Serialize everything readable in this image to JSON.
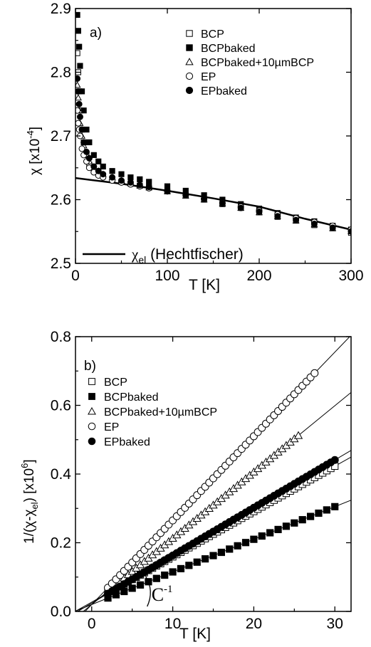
{
  "chart_data": [
    {
      "type": "scatter",
      "panel_label": "a)",
      "xlabel": "T [K]",
      "ylabel": "χ [x10",
      "ylabel_sup": "-4",
      "ylabel_end": "]",
      "xlim": [
        0,
        300
      ],
      "ylim": [
        2.5,
        2.9
      ],
      "xticks": [
        0,
        100,
        200,
        300
      ],
      "xtick_labels": [
        "0",
        "100",
        "200",
        "300"
      ],
      "yticks": [
        2.5,
        2.6,
        2.7,
        2.8,
        2.9
      ],
      "ytick_labels": [
        "2.5",
        "2.6",
        "2.7",
        "2.8",
        "2.9"
      ],
      "legend_position": "top-right",
      "series": [
        {
          "name": "BCP",
          "marker": "open-square",
          "x": [
            2,
            3,
            4,
            5,
            7,
            9,
            12,
            15,
            20,
            25,
            30,
            40,
            50,
            60,
            70,
            80,
            100,
            120,
            140,
            160,
            180,
            200,
            220,
            240,
            260,
            280,
            300
          ],
          "y": [
            2.83,
            2.8,
            2.77,
            2.74,
            2.71,
            2.69,
            2.67,
            2.655,
            2.645,
            2.64,
            2.637,
            2.632,
            2.628,
            2.625,
            2.622,
            2.619,
            2.613,
            2.607,
            2.6,
            2.593,
            2.587,
            2.58,
            2.573,
            2.567,
            2.56,
            2.555,
            2.548
          ]
        },
        {
          "name": "BCPbaked",
          "marker": "filled-square",
          "x": [
            2,
            3,
            4,
            5,
            7,
            9,
            12,
            15,
            20,
            25,
            30,
            40,
            50,
            60,
            70,
            80,
            100,
            120,
            140,
            160,
            180,
            200,
            220,
            240,
            260,
            280,
            300
          ],
          "y": [
            2.89,
            2.865,
            2.84,
            2.81,
            2.77,
            2.74,
            2.71,
            2.69,
            2.67,
            2.66,
            2.652,
            2.645,
            2.64,
            2.635,
            2.632,
            2.628,
            2.621,
            2.614,
            2.607,
            2.6,
            2.593,
            2.586,
            2.579,
            2.572,
            2.566,
            2.559,
            2.553
          ]
        },
        {
          "name": "BCPbaked+10µmBCP",
          "marker": "open-triangle",
          "x": [
            2,
            3,
            4,
            5,
            7,
            9,
            12,
            15,
            20,
            25,
            30,
            40,
            50,
            60,
            70,
            80,
            100,
            120,
            140,
            160,
            180,
            200,
            220,
            240,
            260,
            280,
            300
          ],
          "y": [
            2.78,
            2.76,
            2.74,
            2.72,
            2.7,
            2.685,
            2.67,
            2.66,
            2.65,
            2.645,
            2.64,
            2.635,
            2.63,
            2.626,
            2.622,
            2.619,
            2.613,
            2.606,
            2.6,
            2.594,
            2.587,
            2.58,
            2.574,
            2.567,
            2.561,
            2.555,
            2.55
          ]
        },
        {
          "name": "EP",
          "marker": "open-circle",
          "x": [
            2,
            3,
            4,
            5,
            7,
            9,
            12,
            15,
            20,
            25,
            30,
            40,
            50,
            60,
            70,
            80,
            100,
            120,
            140,
            160,
            180,
            200,
            220,
            240,
            260,
            280,
            300
          ],
          "y": [
            2.74,
            2.72,
            2.71,
            2.7,
            2.68,
            2.67,
            2.66,
            2.65,
            2.643,
            2.638,
            2.635,
            2.63,
            2.627,
            2.624,
            2.621,
            2.618,
            2.613,
            2.607,
            2.601,
            2.595,
            2.589,
            2.583,
            2.577,
            2.571,
            2.565,
            2.559,
            2.553
          ]
        },
        {
          "name": "EPbaked",
          "marker": "filled-circle",
          "x": [
            2,
            3,
            4,
            5,
            7,
            9,
            12,
            15,
            20,
            25,
            30,
            40,
            50,
            60,
            70,
            80,
            100,
            120,
            140,
            160,
            180,
            200,
            220,
            240,
            260,
            280,
            300
          ],
          "y": [
            2.79,
            2.77,
            2.75,
            2.73,
            2.71,
            2.69,
            2.675,
            2.665,
            2.652,
            2.645,
            2.64,
            2.635,
            2.63,
            2.627,
            2.623,
            2.62,
            2.614,
            2.607,
            2.601,
            2.594,
            2.587,
            2.581,
            2.574,
            2.568,
            2.562,
            2.556,
            2.55
          ]
        }
      ],
      "line": {
        "label_symbol": "χ",
        "label_sub": "el",
        "label_rest": " (Hechtfischer)",
        "x": [
          0,
          50,
          100,
          150,
          200,
          250,
          300
        ],
        "y": [
          2.634,
          2.625,
          2.614,
          2.602,
          2.589,
          2.57,
          2.553
        ]
      }
    },
    {
      "type": "scatter",
      "panel_label": "b)",
      "xlabel": "T [K]",
      "ylabel": "1/(χ-χ",
      "ylabel_sub": "el",
      "ylabel_mid": ") [x10",
      "ylabel_sup": "6",
      "ylabel_end": "]",
      "xlim": [
        -2,
        32
      ],
      "ylim": [
        0.0,
        0.8
      ],
      "xticks": [
        0,
        10,
        20,
        30
      ],
      "xtick_labels": [
        "0",
        "10",
        "20",
        "30"
      ],
      "yticks": [
        0.0,
        0.2,
        0.4,
        0.6,
        0.8
      ],
      "ytick_labels": [
        "0.0",
        "0.2",
        "0.4",
        "0.6",
        "0.8"
      ],
      "legend_position": "top-left",
      "annotation": {
        "text": "C",
        "sup": "-1",
        "x": 7.2,
        "y": 0.06
      },
      "series": [
        {
          "name": "BCP",
          "marker": "open-square",
          "slope": 0.0132,
          "intercept": 0.027,
          "xmin": 2,
          "xmax": 30,
          "step": 0.5
        },
        {
          "name": "BCPbaked",
          "marker": "filled-square",
          "slope": 0.0095,
          "intercept": 0.02,
          "xmin": 2,
          "xmax": 30,
          "step": 1
        },
        {
          "name": "BCPbaked+10µmBCP",
          "marker": "open-triangle",
          "slope": 0.0193,
          "intercept": 0.02,
          "xmin": 2,
          "xmax": 25.5,
          "step": 0.5
        },
        {
          "name": "EP",
          "marker": "open-circle",
          "slope": 0.0245,
          "intercept": 0.02,
          "xmin": 2,
          "xmax": 27.5,
          "step": 0.5
        },
        {
          "name": "EPbaked",
          "marker": "filled-circle",
          "slope": 0.0139,
          "intercept": 0.024,
          "xmin": 2,
          "xmax": 30,
          "step": 0.5
        }
      ],
      "fit_lines": [
        {
          "slope": 0.0132,
          "intercept": 0.027
        },
        {
          "slope": 0.0095,
          "intercept": 0.02
        },
        {
          "slope": 0.0193,
          "intercept": 0.02
        },
        {
          "slope": 0.0245,
          "intercept": 0.02
        },
        {
          "slope": 0.0139,
          "intercept": 0.024
        }
      ]
    }
  ]
}
